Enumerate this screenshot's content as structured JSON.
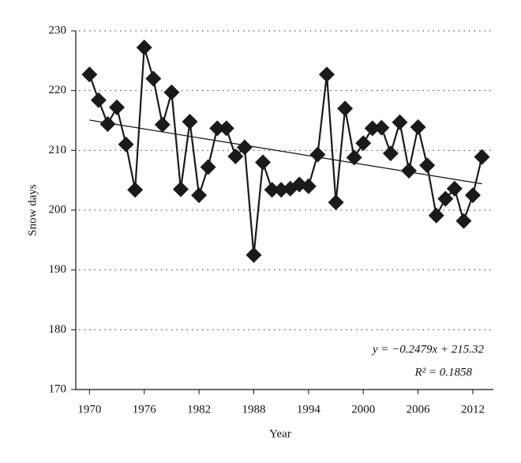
{
  "chart_data": {
    "type": "line",
    "x_label": "Year",
    "y_label": "Snow days",
    "x": [
      1970,
      1971,
      1972,
      1973,
      1974,
      1975,
      1976,
      1977,
      1978,
      1979,
      1980,
      1981,
      1982,
      1983,
      1984,
      1985,
      1986,
      1987,
      1988,
      1989,
      1990,
      1991,
      1992,
      1993,
      1994,
      1995,
      1996,
      1997,
      1998,
      1999,
      2000,
      2001,
      2002,
      2003,
      2004,
      2005,
      2006,
      2007,
      2008,
      2009,
      2010,
      2011,
      2012,
      2013
    ],
    "values": [
      222.7,
      218.4,
      214.4,
      217.2,
      211,
      203.4,
      227.2,
      222,
      214.3,
      219.7,
      203.5,
      214.8,
      202.5,
      207.2,
      213.7,
      213.7,
      209,
      210.5,
      192.5,
      208,
      203.4,
      203.4,
      203.6,
      204.3,
      204,
      209.3,
      222.7,
      201.3,
      217,
      208.8,
      211.2,
      213.7,
      213.8,
      209.5,
      214.7,
      206.6,
      213.9,
      207.5,
      199.1,
      201.9,
      203.6,
      198.2,
      202.5,
      208.9
    ],
    "color": "#1a1a1a",
    "xlim": [
      1968.5,
      2014.25
    ],
    "xticks": [
      1970,
      1976,
      1982,
      1988,
      1994,
      2000,
      2006,
      2012
    ],
    "ylim": [
      170,
      230
    ],
    "yticks": [
      170,
      180,
      190,
      200,
      210,
      220,
      230
    ],
    "grid": true,
    "annotations": [
      "y = −0.2479x + 215.32",
      "R² = 0.1858"
    ]
  }
}
